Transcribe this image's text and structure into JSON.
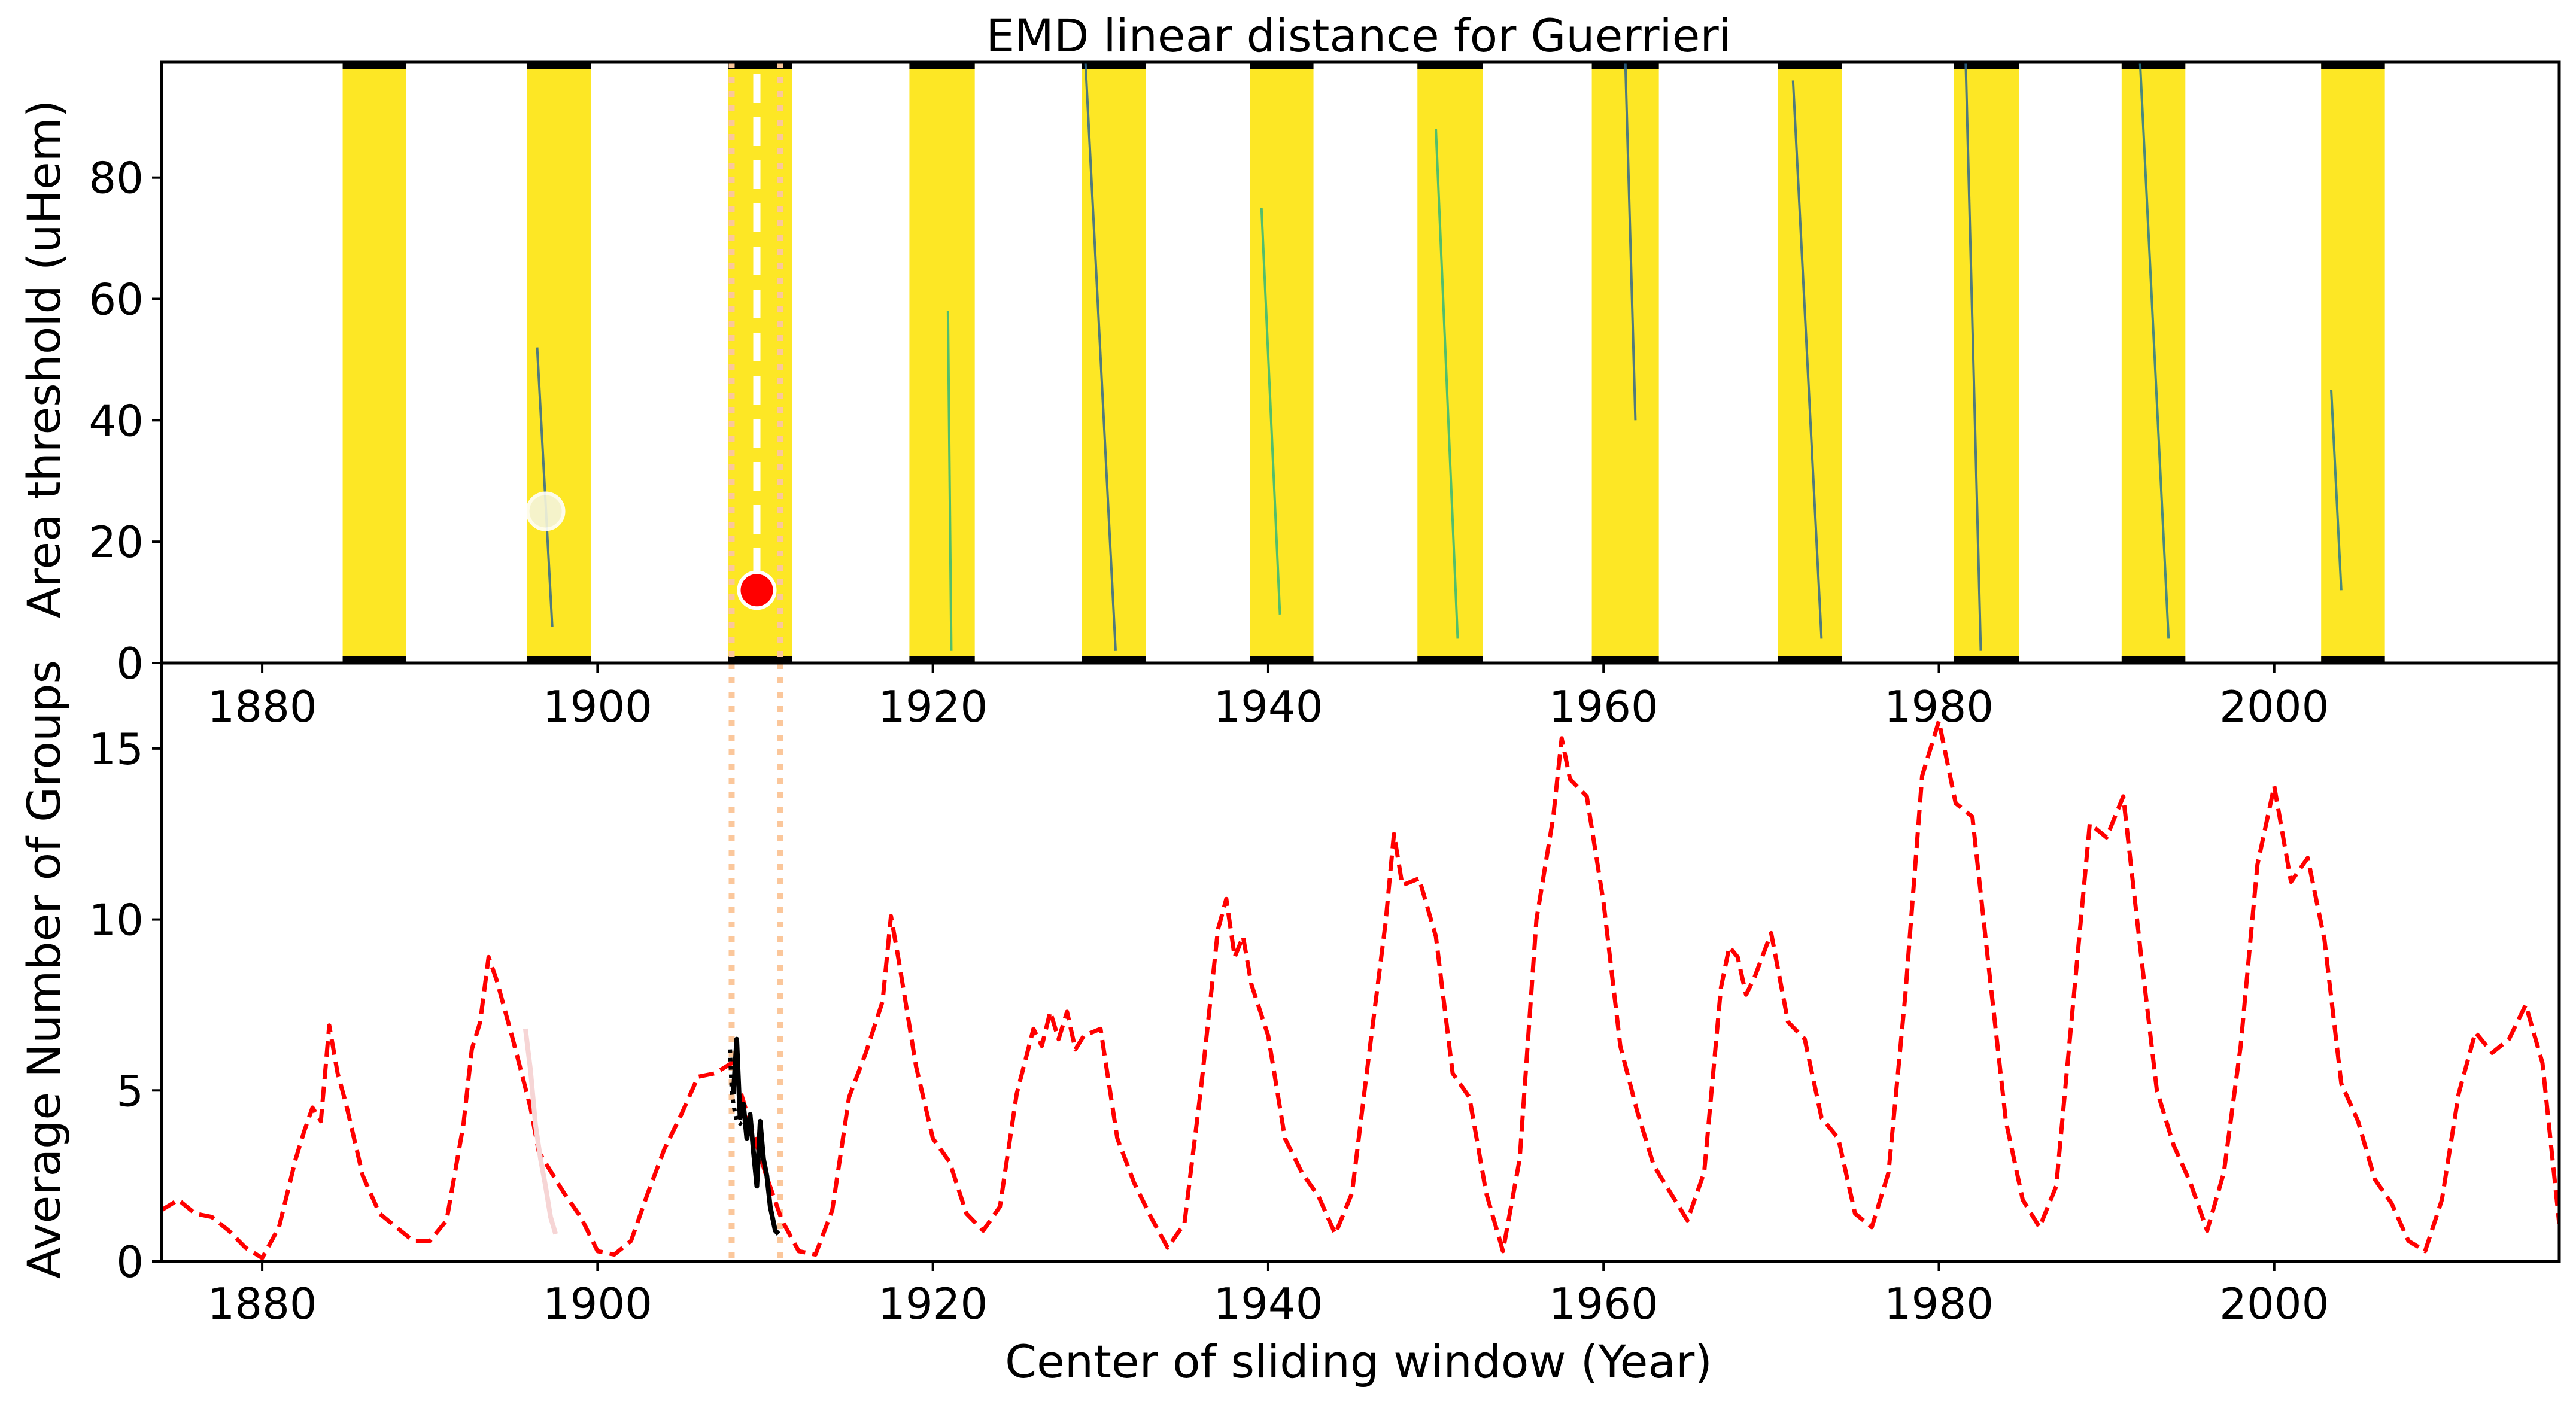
{
  "chart_data": [
    {
      "id": "top",
      "type": "heatmap",
      "title": "EMD linear distance for Guerrieri",
      "xlabel": "",
      "ylabel": "Area threshold (uHem)",
      "xlim": [
        1874,
        2017
      ],
      "ylim": [
        0,
        99
      ],
      "x_ticks": [
        1880,
        1900,
        1920,
        1940,
        1960,
        1980,
        2000
      ],
      "y_ticks": [
        0,
        20,
        40,
        60,
        80
      ],
      "band_color": "#fde725",
      "streak_color": "#2a788e",
      "bands": [
        {
          "x0": 1884.8,
          "x1": 1888.6
        },
        {
          "x0": 1895.8,
          "x1": 1899.6
        },
        {
          "x0": 1907.8,
          "x1": 1911.6
        },
        {
          "x0": 1918.6,
          "x1": 1922.5
        },
        {
          "x0": 1928.9,
          "x1": 1932.7
        },
        {
          "x0": 1938.9,
          "x1": 1942.7
        },
        {
          "x0": 1948.9,
          "x1": 1952.8
        },
        {
          "x0": 1959.3,
          "x1": 1963.3
        },
        {
          "x0": 1970.4,
          "x1": 1974.2
        },
        {
          "x0": 1980.9,
          "x1": 1984.8
        },
        {
          "x0": 1990.9,
          "x1": 1994.7
        },
        {
          "x0": 2002.8,
          "x1": 2006.6
        }
      ],
      "streaks": [
        {
          "x0": 1896.4,
          "y0": 52,
          "x1": 1897.3,
          "y1": 6,
          "color": "#31688e"
        },
        {
          "x0": 1920.9,
          "y0": 58,
          "x1": 1921.1,
          "y1": 2,
          "color": "#35b779"
        },
        {
          "x0": 1929.1,
          "y0": 99,
          "x1": 1930.9,
          "y1": 2,
          "color": "#31688e"
        },
        {
          "x0": 1939.6,
          "y0": 75,
          "x1": 1940.7,
          "y1": 8,
          "color": "#35b779"
        },
        {
          "x0": 1950.0,
          "y0": 88,
          "x1": 1951.3,
          "y1": 4,
          "color": "#35b779"
        },
        {
          "x0": 1961.3,
          "y0": 99,
          "x1": 1961.9,
          "y1": 40,
          "color": "#31688e"
        },
        {
          "x0": 1971.3,
          "y0": 96,
          "x1": 1973.0,
          "y1": 4,
          "color": "#31688e"
        },
        {
          "x0": 1981.6,
          "y0": 99,
          "x1": 1982.5,
          "y1": 2,
          "color": "#31688e"
        },
        {
          "x0": 1992.0,
          "y0": 99,
          "x1": 1993.7,
          "y1": 4,
          "color": "#2a788e"
        },
        {
          "x0": 2003.4,
          "y0": 45,
          "x1": 2004.0,
          "y1": 12,
          "color": "#2a788e"
        }
      ],
      "best_point": {
        "x": 1909.5,
        "y": 12,
        "color": "#ff0000"
      },
      "secondary_point": {
        "x": 1896.9,
        "y": 25,
        "color": "#f5f5dc"
      },
      "selected_year_line": {
        "x": 1909.5,
        "color": "#ffffff"
      }
    },
    {
      "id": "bottom",
      "type": "line",
      "xlabel": "Center of sliding window (Year)",
      "ylabel": "Average Number of Groups",
      "xlim": [
        1874,
        2017
      ],
      "ylim": [
        0,
        17.5
      ],
      "x_ticks": [
        1880,
        1900,
        1920,
        1940,
        1960,
        1980,
        2000
      ],
      "y_ticks": [
        0,
        5,
        10,
        15
      ],
      "window_lines": [
        1908.0,
        1910.9
      ],
      "window_color": "#fbc79b",
      "series": [
        {
          "style": "dashed",
          "color": "#ff0000",
          "points": [
            [
              1874,
              1.5
            ],
            [
              1875,
              1.8
            ],
            [
              1876,
              1.4
            ],
            [
              1877,
              1.3
            ],
            [
              1878,
              0.9
            ],
            [
              1879,
              0.4
            ],
            [
              1880,
              0.1
            ],
            [
              1881,
              1.0
            ],
            [
              1882,
              3.0
            ],
            [
              1882.5,
              3.8
            ],
            [
              1883,
              4.5
            ],
            [
              1883.5,
              4.1
            ],
            [
              1884,
              6.9
            ],
            [
              1884.5,
              5.5
            ],
            [
              1885,
              4.6
            ],
            [
              1886,
              2.5
            ],
            [
              1887,
              1.4
            ],
            [
              1888,
              1.0
            ],
            [
              1889,
              0.6
            ],
            [
              1890,
              0.6
            ],
            [
              1891,
              1.2
            ],
            [
              1892,
              4.0
            ],
            [
              1892.5,
              6.2
            ],
            [
              1893,
              7.0
            ],
            [
              1893.5,
              8.9
            ],
            [
              1894,
              8.2
            ],
            [
              1895,
              6.4
            ],
            [
              1896,
              4.5
            ],
            [
              1896.5,
              3.2
            ],
            [
              1897,
              2.8
            ],
            [
              1897.5,
              2.4
            ],
            [
              1898,
              2.0
            ],
            [
              1899,
              1.3
            ],
            [
              1900,
              0.3
            ],
            [
              1901,
              0.2
            ],
            [
              1902,
              0.6
            ],
            [
              1903,
              2.0
            ],
            [
              1904,
              3.3
            ],
            [
              1905,
              4.3
            ],
            [
              1906,
              5.4
            ],
            [
              1907,
              5.5
            ],
            [
              1908,
              5.8
            ],
            [
              1909,
              4.2
            ],
            [
              1910,
              2.6
            ],
            [
              1911,
              1.2
            ],
            [
              1912,
              0.3
            ],
            [
              1913,
              0.2
            ],
            [
              1914,
              1.5
            ],
            [
              1915,
              4.8
            ],
            [
              1916,
              6.1
            ],
            [
              1917,
              7.6
            ],
            [
              1917.5,
              10.1
            ],
            [
              1918,
              8.7
            ],
            [
              1919,
              5.7
            ],
            [
              1920,
              3.6
            ],
            [
              1921,
              2.9
            ],
            [
              1922,
              1.4
            ],
            [
              1923,
              0.9
            ],
            [
              1924,
              1.6
            ],
            [
              1925,
              4.9
            ],
            [
              1926,
              6.8
            ],
            [
              1926.5,
              6.3
            ],
            [
              1927,
              7.3
            ],
            [
              1927.5,
              6.5
            ],
            [
              1928,
              7.3
            ],
            [
              1928.5,
              6.2
            ],
            [
              1929,
              6.6
            ],
            [
              1930,
              6.8
            ],
            [
              1931,
              3.6
            ],
            [
              1932,
              2.3
            ],
            [
              1933,
              1.3
            ],
            [
              1934,
              0.4
            ],
            [
              1935,
              1.1
            ],
            [
              1936,
              5.1
            ],
            [
              1937,
              9.7
            ],
            [
              1937.5,
              10.6
            ],
            [
              1938,
              8.9
            ],
            [
              1938.5,
              9.5
            ],
            [
              1939,
              8.1
            ],
            [
              1940,
              6.6
            ],
            [
              1941,
              3.6
            ],
            [
              1942,
              2.6
            ],
            [
              1943,
              1.9
            ],
            [
              1944,
              0.8
            ],
            [
              1945,
              2.0
            ],
            [
              1946,
              6.0
            ],
            [
              1947,
              9.9
            ],
            [
              1947.5,
              12.5
            ],
            [
              1948,
              11.0
            ],
            [
              1949,
              11.2
            ],
            [
              1950,
              9.5
            ],
            [
              1951,
              5.5
            ],
            [
              1952,
              4.8
            ],
            [
              1953,
              2.0
            ],
            [
              1954,
              0.3
            ],
            [
              1955,
              3.0
            ],
            [
              1956,
              10.0
            ],
            [
              1957,
              13.0
            ],
            [
              1957.5,
              15.3
            ],
            [
              1958,
              14.1
            ],
            [
              1959,
              13.6
            ],
            [
              1960,
              10.5
            ],
            [
              1961,
              6.3
            ],
            [
              1962,
              4.4
            ],
            [
              1963,
              2.8
            ],
            [
              1964,
              2.0
            ],
            [
              1965,
              1.2
            ],
            [
              1966,
              2.6
            ],
            [
              1967,
              8.0
            ],
            [
              1967.5,
              9.2
            ],
            [
              1968,
              8.9
            ],
            [
              1968.5,
              7.8
            ],
            [
              1969,
              8.3
            ],
            [
              1970,
              9.6
            ],
            [
              1971,
              7.0
            ],
            [
              1972,
              6.5
            ],
            [
              1973,
              4.2
            ],
            [
              1974,
              3.6
            ],
            [
              1975,
              1.4
            ],
            [
              1976,
              1.0
            ],
            [
              1977,
              2.6
            ],
            [
              1978,
              7.8
            ],
            [
              1979,
              14.2
            ],
            [
              1980,
              15.8
            ],
            [
              1981,
              13.4
            ],
            [
              1982,
              13.0
            ],
            [
              1983,
              8.5
            ],
            [
              1984,
              4.1
            ],
            [
              1985,
              1.8
            ],
            [
              1986,
              1.0
            ],
            [
              1987,
              2.2
            ],
            [
              1988,
              7.5
            ],
            [
              1989,
              12.8
            ],
            [
              1990,
              12.4
            ],
            [
              1991,
              13.6
            ],
            [
              1992,
              9.2
            ],
            [
              1993,
              5.0
            ],
            [
              1994,
              3.4
            ],
            [
              1995,
              2.3
            ],
            [
              1996,
              0.9
            ],
            [
              1997,
              2.6
            ],
            [
              1998,
              6.3
            ],
            [
              1999,
              11.6
            ],
            [
              2000,
              13.9
            ],
            [
              2001,
              11.1
            ],
            [
              2002,
              11.8
            ],
            [
              2003,
              9.4
            ],
            [
              2004,
              5.2
            ],
            [
              2005,
              4.1
            ],
            [
              2006,
              2.4
            ],
            [
              2007,
              1.7
            ],
            [
              2008,
              0.6
            ],
            [
              2009,
              0.3
            ],
            [
              2010,
              1.8
            ],
            [
              2011,
              4.9
            ],
            [
              2012,
              6.7
            ],
            [
              2013,
              6.1
            ],
            [
              2014,
              6.5
            ],
            [
              2015,
              7.5
            ],
            [
              2016,
              5.8
            ],
            [
              2017,
              1.1
            ]
          ]
        },
        {
          "style": "solid",
          "color": "#000000",
          "points": [
            [
              1908.1,
              4.9
            ],
            [
              1908.3,
              6.5
            ],
            [
              1908.5,
              4.2
            ],
            [
              1908.7,
              4.6
            ],
            [
              1908.9,
              3.6
            ],
            [
              1909.1,
              4.3
            ],
            [
              1909.3,
              3.2
            ],
            [
              1909.5,
              2.2
            ],
            [
              1909.7,
              4.1
            ],
            [
              1909.9,
              3.0
            ],
            [
              1910.1,
              2.5
            ],
            [
              1910.3,
              1.6
            ],
            [
              1910.6,
              0.9
            ],
            [
              1910.8,
              0.8
            ]
          ]
        },
        {
          "style": "dotted",
          "color": "#000000",
          "points": [
            [
              1907.9,
              6.2
            ],
            [
              1908.0,
              5.0
            ],
            [
              1908.1,
              4.6
            ],
            [
              1908.3,
              4.1
            ],
            [
              1908.6,
              4.0
            ]
          ]
        },
        {
          "style": "solid",
          "color": "#f6d5d5",
          "points": [
            [
              1895.7,
              6.8
            ],
            [
              1896.0,
              5.6
            ],
            [
              1896.3,
              4.0
            ],
            [
              1896.6,
              3.0
            ],
            [
              1896.9,
              2.2
            ],
            [
              1897.2,
              1.3
            ],
            [
              1897.5,
              0.8
            ]
          ]
        }
      ]
    }
  ]
}
